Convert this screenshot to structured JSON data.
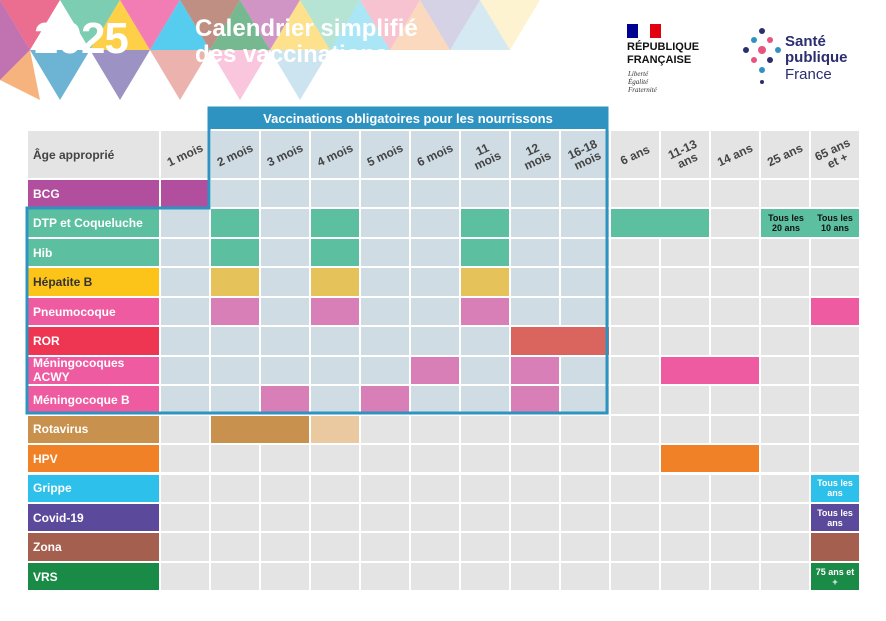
{
  "header": {
    "year": "2025",
    "title_line1": "Calendrier simplifié",
    "title_line2": "des vaccinations",
    "republic_line1": "RÉPUBLIQUE",
    "republic_line2": "FRANÇAISE",
    "motto": [
      "Liberté",
      "Égalité",
      "Fraternité"
    ],
    "agency": [
      "Santé",
      "publique",
      "France"
    ]
  },
  "table": {
    "mandatory_banner": "Vaccinations obligatoires pour les nourrissons",
    "age_header": "Âge approprié",
    "columns": [
      "1 mois",
      "2 mois",
      "3 mois",
      "4 mois",
      "5 mois",
      "6 mois",
      "11 mois",
      "12 mois",
      "16-18 mois",
      "6 ans",
      "11-13 ans",
      "14 ans",
      "25 ans",
      "65 ans et +"
    ],
    "rows": [
      {
        "label": "BCG",
        "color": "#b14f9e",
        "cells": [
          "#b14f9e",
          null,
          null,
          null,
          null,
          null,
          null,
          null,
          null,
          null,
          null,
          null,
          null,
          null
        ]
      },
      {
        "label": "DTP et Coqueluche",
        "color": "#5cc0a0",
        "cells": [
          null,
          "#5cc0a0",
          null,
          "#5cc0a0",
          null,
          null,
          "#5cc0a0",
          null,
          null,
          "#5cc0a0",
          "#5cc0a0",
          null,
          {
            "color": "#5cc0a0",
            "text": "Tous les 20 ans"
          },
          {
            "color": "#5cc0a0",
            "text": "Tous les 10 ans"
          }
        ]
      },
      {
        "label": "Hib",
        "color": "#5cc0a0",
        "cells": [
          null,
          "#5cc0a0",
          null,
          "#5cc0a0",
          null,
          null,
          "#5cc0a0",
          null,
          null,
          null,
          null,
          null,
          null,
          null
        ]
      },
      {
        "label": "Hépatite B",
        "color": "#fcc419",
        "cells": [
          null,
          "#e5c35a",
          null,
          "#e5c35a",
          null,
          null,
          "#e5c35a",
          null,
          null,
          null,
          null,
          null,
          null,
          null
        ]
      },
      {
        "label": "Pneumocoque",
        "color": "#ef5ba1",
        "cells": [
          null,
          "#d97fb8",
          null,
          "#d97fb8",
          null,
          null,
          "#d97fb8",
          null,
          null,
          null,
          null,
          null,
          null,
          "#ef5ba1"
        ]
      },
      {
        "label": "ROR",
        "color": "#ee3552",
        "cells": [
          null,
          null,
          null,
          null,
          null,
          null,
          null,
          "#d9655e",
          "#d9655e",
          null,
          null,
          null,
          null,
          null
        ]
      },
      {
        "label": "Méningocoques ACWY",
        "color": "#ef5ba1",
        "cells": [
          null,
          null,
          null,
          null,
          null,
          "#d97fb8",
          null,
          "#d97fb8",
          null,
          null,
          "#ef5ba1",
          "#ef5ba1",
          null,
          null
        ]
      },
      {
        "label": "Méningocoque B",
        "color": "#ef5ba1",
        "cells": [
          null,
          null,
          "#d97fb8",
          null,
          "#d97fb8",
          null,
          null,
          "#d97fb8",
          null,
          null,
          null,
          null,
          null,
          null
        ]
      },
      {
        "label": "Rotavirus",
        "color": "#c9914e",
        "cells": [
          null,
          "#c9914e",
          "#c9914e",
          "#eac9a0",
          null,
          null,
          null,
          null,
          null,
          null,
          null,
          null,
          null,
          null
        ]
      },
      {
        "label": "HPV",
        "color": "#f08127",
        "cells": [
          null,
          null,
          null,
          null,
          null,
          null,
          null,
          null,
          null,
          null,
          "#f08127",
          "#f08127",
          null,
          null
        ]
      },
      {
        "label": "Grippe",
        "color": "#2cc0ea",
        "cells": [
          null,
          null,
          null,
          null,
          null,
          null,
          null,
          null,
          null,
          null,
          null,
          null,
          null,
          {
            "color": "#2cc0ea",
            "text": "Tous les ans"
          }
        ]
      },
      {
        "label": "Covid-19",
        "color": "#5b4a9c",
        "cells": [
          null,
          null,
          null,
          null,
          null,
          null,
          null,
          null,
          null,
          null,
          null,
          null,
          null,
          {
            "color": "#5b4a9c",
            "text": "Tous les ans"
          }
        ]
      },
      {
        "label": "Zona",
        "color": "#a55f4f",
        "cells": [
          null,
          null,
          null,
          null,
          null,
          null,
          null,
          null,
          null,
          null,
          null,
          null,
          null,
          "#a55f4f"
        ]
      },
      {
        "label": "VRS",
        "color": "#1a8a47",
        "cells": [
          null,
          null,
          null,
          null,
          null,
          null,
          null,
          null,
          null,
          null,
          null,
          null,
          null,
          {
            "color": "#1a8a47",
            "text": "75 ans et +"
          }
        ]
      }
    ]
  }
}
